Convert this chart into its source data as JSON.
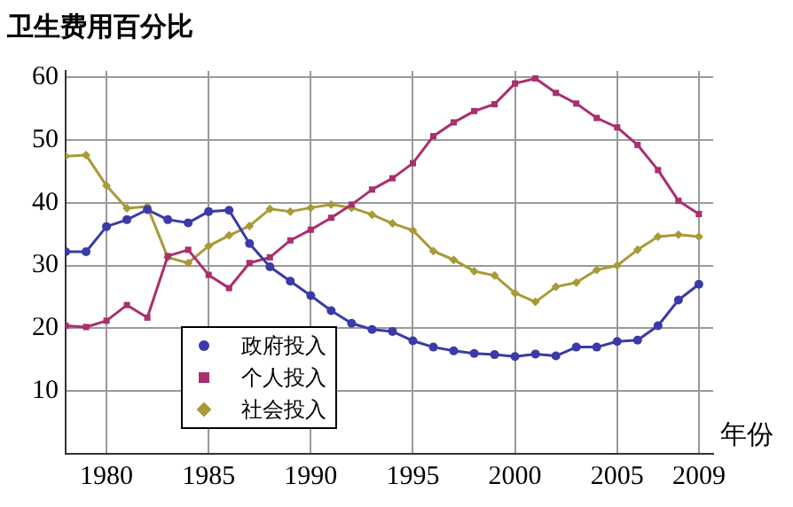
{
  "chart_data": {
    "type": "line",
    "ylabel": "卫生费用百分比",
    "xlabel": "年份",
    "x": [
      1978,
      1979,
      1980,
      1981,
      1982,
      1983,
      1984,
      1985,
      1986,
      1987,
      1988,
      1989,
      1990,
      1991,
      1992,
      1993,
      1994,
      1995,
      1996,
      1997,
      1998,
      1999,
      2000,
      2001,
      2002,
      2003,
      2004,
      2005,
      2006,
      2007,
      2008,
      2009
    ],
    "series": [
      {
        "name": "政府投入",
        "color": "#3a3aa8",
        "marker": "circle",
        "values": [
          32.2,
          32.2,
          36.2,
          37.3,
          38.9,
          37.3,
          36.8,
          38.6,
          38.8,
          33.5,
          29.8,
          27.5,
          25.2,
          22.8,
          20.8,
          19.8,
          19.5,
          18.0,
          17.0,
          16.4,
          16.0,
          15.8,
          15.5,
          15.9,
          15.6,
          17.0,
          17.0,
          17.9,
          18.1,
          20.4,
          24.5,
          27.0
        ]
      },
      {
        "name": "个人投入",
        "color": "#a8306e",
        "marker": "square",
        "values": [
          20.4,
          20.2,
          21.2,
          23.7,
          21.7,
          31.5,
          32.5,
          28.5,
          26.4,
          30.4,
          31.3,
          34.0,
          35.7,
          37.6,
          39.7,
          42.1,
          43.9,
          46.3,
          50.6,
          52.8,
          54.6,
          55.7,
          59.0,
          59.8,
          57.5,
          55.8,
          53.5,
          52.0,
          49.2,
          45.2,
          40.3,
          38.2
        ]
      },
      {
        "name": "社会投入",
        "color": "#a89a38",
        "marker": "diamond",
        "values": [
          47.4,
          47.6,
          42.7,
          39.1,
          39.4,
          31.3,
          30.4,
          33.1,
          34.8,
          36.3,
          39.0,
          38.6,
          39.2,
          39.7,
          39.2,
          38.1,
          36.7,
          35.6,
          32.3,
          30.9,
          29.1,
          28.4,
          25.6,
          24.2,
          26.6,
          27.3,
          29.3,
          30.0,
          32.5,
          34.6,
          34.9,
          34.6
        ]
      }
    ],
    "xlim": [
      1978,
      2009.7
    ],
    "xticks": [
      1980,
      1985,
      1990,
      1995,
      2000,
      2005,
      2009
    ],
    "ylim": [
      0,
      61
    ],
    "yticks": [
      10,
      20,
      30,
      40,
      50,
      60
    ],
    "grid": true,
    "legend": "bottom left",
    "line_style": "solid"
  }
}
